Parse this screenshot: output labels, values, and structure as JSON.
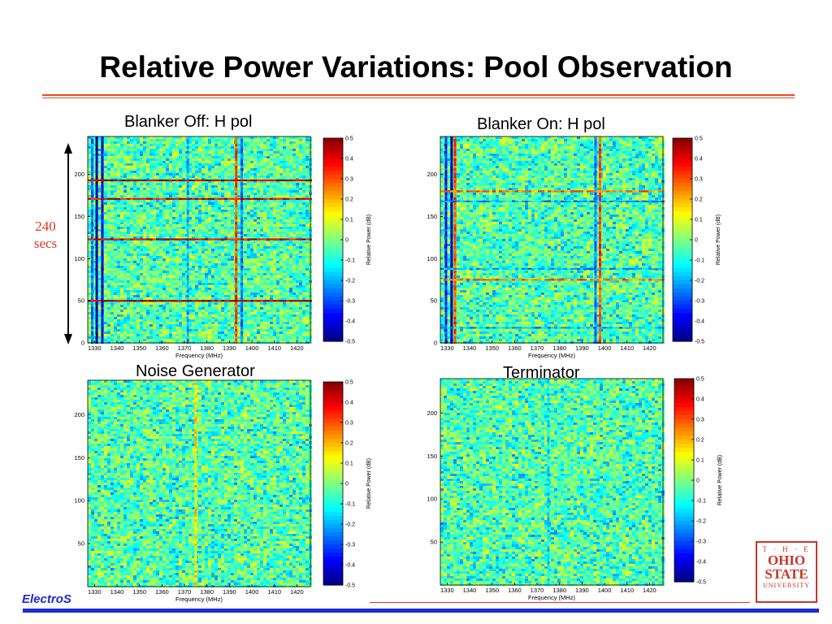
{
  "slide": {
    "title": "Relative Power Variations: Pool Observation",
    "time_annotation": {
      "value": "240",
      "unit": "secs"
    },
    "brand": "ElectroS",
    "logo": {
      "the": "T · H · E",
      "line1": "OHIO",
      "line2": "STATE",
      "line3": "UNIVERSITY"
    }
  },
  "panel_titles": [
    "Blanker Off: H pol",
    "Blanker On: H pol",
    "Noise Generator",
    "Terminator"
  ],
  "colors": {
    "accent_rule": "#e84c1e",
    "footer_bar": "#1b2bd6",
    "annotation": "#e8301e",
    "logo": "#c9352a"
  },
  "chart_data": [
    {
      "type": "heatmap",
      "title": "Blanker Off: H pol",
      "xlabel": "Frequency (MHz)",
      "ylabel": "",
      "x_ticks": [
        1330,
        1340,
        1350,
        1360,
        1370,
        1380,
        1390,
        1400,
        1410,
        1420
      ],
      "y_ticks": [
        0,
        50,
        100,
        150,
        200
      ],
      "xlim": [
        1327,
        1426
      ],
      "ylim": [
        0,
        245
      ],
      "colorbar": {
        "label": "Relative Power (dB)",
        "ticks": [
          0.5,
          0.4,
          0.3,
          0.2,
          0.1,
          0,
          -0.1,
          -0.2,
          -0.3,
          -0.4,
          -0.5
        ],
        "range": [
          -0.5,
          0.5
        ]
      },
      "features": {
        "vertical_lines": [
          {
            "freq": 1331,
            "value": -0.45
          },
          {
            "freq": 1333.5,
            "value": -0.4
          },
          {
            "freq": 1329,
            "value": -0.25
          },
          {
            "freq": 1371.5,
            "value": -0.2
          },
          {
            "freq": 1393,
            "value": 0.3
          },
          {
            "freq": 1395.5,
            "value": -0.25
          }
        ],
        "horizontal_lines": [
          {
            "time": 50,
            "value": 0.45
          },
          {
            "time": 123,
            "value": 0.4
          },
          {
            "time": 171,
            "value": 0.4
          },
          {
            "time": 193,
            "value": 0.45
          }
        ]
      }
    },
    {
      "type": "heatmap",
      "title": "Blanker On: H pol",
      "xlabel": "Frequency (MHz)",
      "ylabel": "",
      "x_ticks": [
        1330,
        1340,
        1350,
        1360,
        1370,
        1380,
        1390,
        1400,
        1410,
        1420
      ],
      "y_ticks": [
        0,
        50,
        100,
        150,
        200
      ],
      "xlim": [
        1327,
        1426
      ],
      "ylim": [
        0,
        245
      ],
      "colorbar": {
        "label": "Relative Power (dB)",
        "ticks": [
          0.5,
          0.4,
          0.3,
          0.2,
          0.1,
          0,
          -0.1,
          -0.2,
          -0.3,
          -0.4,
          -0.5
        ],
        "range": [
          -0.5,
          0.5
        ]
      },
      "features": {
        "vertical_lines": [
          {
            "freq": 1329.5,
            "value": -0.35
          },
          {
            "freq": 1332,
            "value": -0.45
          },
          {
            "freq": 1333.5,
            "value": 0.3
          },
          {
            "freq": 1396,
            "value": -0.25
          },
          {
            "freq": 1398,
            "value": 0.3
          }
        ],
        "horizontal_lines": [
          {
            "time": 18,
            "value": -0.2
          },
          {
            "time": 75,
            "value": 0.25
          },
          {
            "time": 88,
            "value": -0.2
          },
          {
            "time": 168,
            "value": -0.2
          },
          {
            "time": 180,
            "value": 0.25
          }
        ]
      }
    },
    {
      "type": "heatmap",
      "title": "Noise Generator",
      "xlabel": "Frequency (MHz)",
      "ylabel": "",
      "x_ticks": [
        1330,
        1340,
        1350,
        1360,
        1370,
        1380,
        1390,
        1400,
        1410,
        1420
      ],
      "y_ticks": [
        50,
        100,
        150,
        200
      ],
      "xlim": [
        1327,
        1426
      ],
      "ylim": [
        0,
        240
      ],
      "colorbar": {
        "label": "Relative Power (dB)",
        "ticks": [
          0.5,
          0.4,
          0.3,
          0.2,
          0.1,
          0,
          -0.1,
          -0.2,
          -0.3,
          -0.4,
          -0.5
        ],
        "range": [
          -0.5,
          0.5
        ]
      },
      "features": {
        "vertical_lines": [
          {
            "freq": 1375,
            "value": 0.15
          }
        ],
        "horizontal_lines": []
      }
    },
    {
      "type": "heatmap",
      "title": "Terminator",
      "xlabel": "Frequency (MHz)",
      "ylabel": "",
      "x_ticks": [
        1330,
        1340,
        1350,
        1360,
        1370,
        1380,
        1390,
        1400,
        1410,
        1420
      ],
      "y_ticks": [
        50,
        100,
        150,
        200
      ],
      "xlim": [
        1327,
        1426
      ],
      "ylim": [
        0,
        240
      ],
      "colorbar": {
        "label": "Relative Power (dB)",
        "ticks": [
          0.5,
          0.4,
          0.3,
          0.2,
          0.1,
          0,
          -0.1,
          -0.2,
          -0.3,
          -0.4,
          -0.5
        ],
        "range": [
          -0.5,
          0.5
        ]
      },
      "features": {
        "vertical_lines": [
          {
            "freq": 1375,
            "value": -0.15
          }
        ],
        "horizontal_lines": []
      }
    }
  ]
}
